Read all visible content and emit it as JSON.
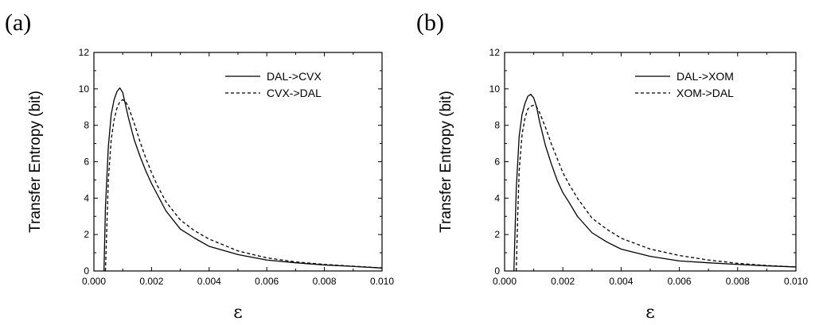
{
  "chart_data": [
    {
      "type": "line",
      "panel_label": "(a)",
      "xlabel": "ε",
      "ylabel": "Transfer Entropy (bit)",
      "xlim": [
        0,
        0.01
      ],
      "ylim": [
        0,
        12
      ],
      "xticks": [
        "0.000",
        "0.002",
        "0.004",
        "0.006",
        "0.008",
        "0.010"
      ],
      "yticks": [
        "0",
        "2",
        "4",
        "6",
        "8",
        "10",
        "12"
      ],
      "legend_position": "top-right",
      "series": [
        {
          "name": "DAL->CVX",
          "style": "solid",
          "x": [
            0.00035,
            0.0004,
            0.0005,
            0.0006,
            0.0007,
            0.0008,
            0.0009,
            0.001,
            0.0011,
            0.0012,
            0.0014,
            0.0016,
            0.0018,
            0.002,
            0.0022,
            0.0025,
            0.003,
            0.0035,
            0.004,
            0.005,
            0.006,
            0.007,
            0.008,
            0.009,
            0.01
          ],
          "y": [
            0,
            3.5,
            6.8,
            8.6,
            9.4,
            9.85,
            10.05,
            9.8,
            9.1,
            8.4,
            7.2,
            6.3,
            5.5,
            4.8,
            4.2,
            3.3,
            2.3,
            1.8,
            1.35,
            0.9,
            0.6,
            0.45,
            0.33,
            0.25,
            0.16
          ]
        },
        {
          "name": "CVX->DAL",
          "style": "dashed",
          "x": [
            0.0004,
            0.00045,
            0.0005,
            0.0006,
            0.0007,
            0.0008,
            0.0009,
            0.001,
            0.0011,
            0.0012,
            0.0014,
            0.0016,
            0.0018,
            0.002,
            0.0022,
            0.0025,
            0.003,
            0.0035,
            0.004,
            0.005,
            0.006,
            0.007,
            0.008,
            0.009,
            0.01
          ],
          "y": [
            0,
            2.5,
            5.0,
            7.2,
            8.3,
            8.95,
            9.3,
            9.4,
            9.3,
            9.0,
            8.1,
            7.1,
            6.2,
            5.4,
            4.7,
            3.8,
            2.8,
            2.2,
            1.75,
            1.1,
            0.72,
            0.5,
            0.36,
            0.26,
            0.17
          ]
        }
      ]
    },
    {
      "type": "line",
      "panel_label": "(b)",
      "xlabel": "ε",
      "ylabel": "Transfer Entropy (bit)",
      "xlim": [
        0,
        0.01
      ],
      "ylim": [
        0,
        12
      ],
      "xticks": [
        "0.000",
        "0.002",
        "0.004",
        "0.006",
        "0.008",
        "0.010"
      ],
      "yticks": [
        "0",
        "2",
        "4",
        "6",
        "8",
        "10",
        "12"
      ],
      "legend_position": "top-right",
      "series": [
        {
          "name": "DAL->XOM",
          "style": "solid",
          "x": [
            0.00032,
            0.0004,
            0.0005,
            0.0006,
            0.0007,
            0.0008,
            0.0009,
            0.001,
            0.0011,
            0.0012,
            0.0014,
            0.0016,
            0.0018,
            0.002,
            0.0022,
            0.0025,
            0.003,
            0.0035,
            0.004,
            0.005,
            0.006,
            0.007,
            0.008,
            0.009,
            0.01
          ],
          "y": [
            0,
            4.5,
            7.4,
            8.6,
            9.2,
            9.6,
            9.7,
            9.5,
            9.0,
            8.2,
            6.9,
            5.9,
            5.0,
            4.3,
            3.8,
            3.0,
            2.1,
            1.6,
            1.2,
            0.8,
            0.55,
            0.45,
            0.36,
            0.28,
            0.22
          ]
        },
        {
          "name": "XOM->DAL",
          "style": "dashed",
          "x": [
            0.0004,
            0.00045,
            0.0005,
            0.0006,
            0.0007,
            0.0008,
            0.0009,
            0.001,
            0.0011,
            0.0012,
            0.0014,
            0.0016,
            0.0018,
            0.002,
            0.0022,
            0.0025,
            0.003,
            0.0035,
            0.004,
            0.005,
            0.006,
            0.007,
            0.008,
            0.009,
            0.01
          ],
          "y": [
            0,
            3.0,
            5.5,
            7.5,
            8.4,
            8.9,
            9.05,
            9.1,
            9.0,
            8.7,
            7.9,
            7.0,
            6.2,
            5.4,
            4.8,
            4.0,
            2.9,
            2.3,
            1.8,
            1.2,
            0.85,
            0.6,
            0.42,
            0.3,
            0.22
          ]
        }
      ]
    }
  ]
}
